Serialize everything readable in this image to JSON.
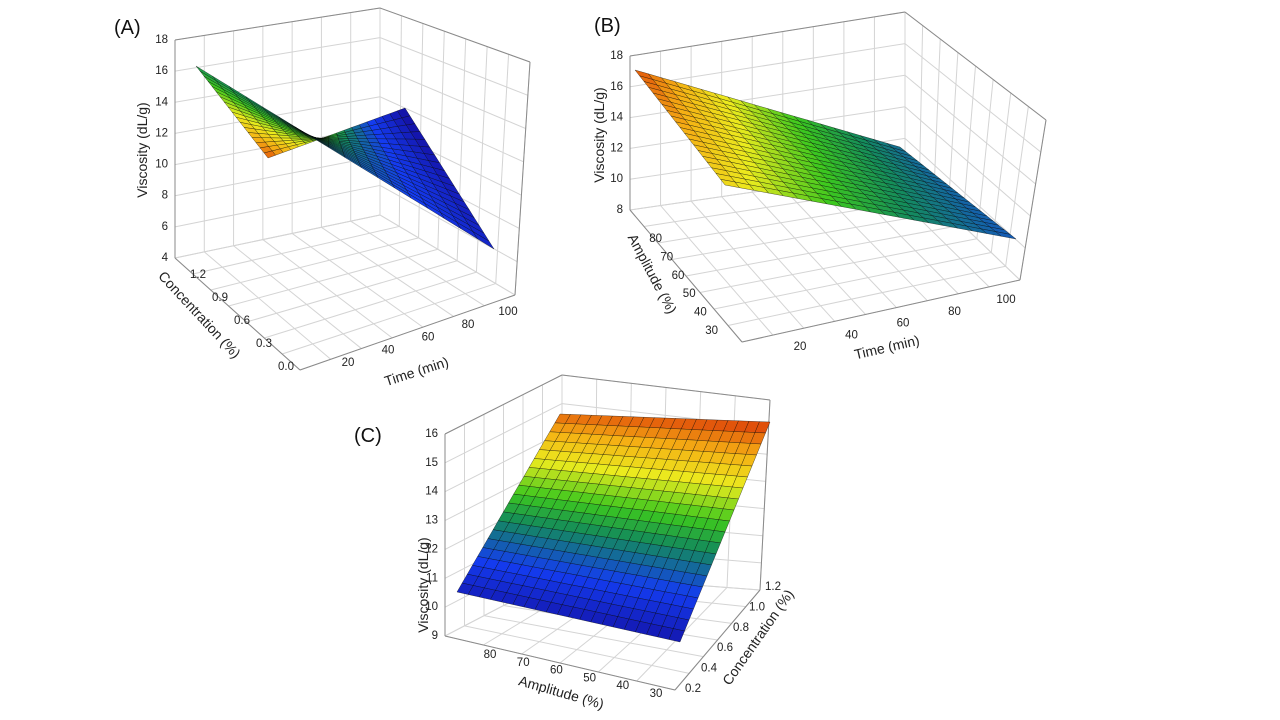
{
  "chart_data": [
    {
      "panel": "(A)",
      "type": "surface3d",
      "zlabel": "Viscosity (dL/g)",
      "xlabel": "Time (min)",
      "ylabel": "Concentration (%)",
      "x_ticks": [
        "20",
        "40",
        "60",
        "80",
        "100"
      ],
      "y_ticks": [
        "0.0",
        "0.3",
        "0.6",
        "0.9",
        "1.2"
      ],
      "z_ticks": [
        "4",
        "6",
        "8",
        "10",
        "12",
        "14",
        "16",
        "18"
      ],
      "xlim": [
        10,
        100
      ],
      "ylim": [
        0.0,
        1.2
      ],
      "zlim": [
        4,
        18
      ],
      "corner_values": {
        "time10_conc0": 10.2,
        "time10_conc1.2": 16.5,
        "time100_conc0": 6.0,
        "time100_conc1.2": 4.5
      },
      "colormap": [
        "blue",
        "green",
        "yellow",
        "orange"
      ]
    },
    {
      "panel": "(B)",
      "type": "surface3d",
      "zlabel": "Viscosity (dL/g)",
      "xlabel": "Time (min)",
      "ylabel": "Amplitude (%)",
      "x_ticks": [
        "20",
        "40",
        "60",
        "80",
        "100"
      ],
      "y_ticks": [
        "30",
        "40",
        "50",
        "60",
        "70",
        "80"
      ],
      "z_ticks": [
        "8",
        "10",
        "12",
        "14",
        "16",
        "18"
      ],
      "xlim": [
        10,
        100
      ],
      "ylim": [
        25,
        85
      ],
      "zlim": [
        8,
        18
      ],
      "corner_values": {
        "time10_amp30": 12.5,
        "time10_amp85": 17.0,
        "time100_amp30": 10.8,
        "time100_amp85": 8.5
      },
      "colormap": [
        "blue",
        "green",
        "yellow",
        "orange"
      ]
    },
    {
      "panel": "(C)",
      "type": "surface3d",
      "zlabel": "Viscosity (dL/g)",
      "xlabel": "Amplitude (%)",
      "ylabel": "Concentration (%)",
      "x_ticks": [
        "80",
        "70",
        "60",
        "50",
        "40",
        "30"
      ],
      "y_ticks": [
        "0.2",
        "0.4",
        "0.6",
        "0.8",
        "1.0",
        "1.2"
      ],
      "z_ticks": [
        "9",
        "10",
        "11",
        "12",
        "13",
        "14",
        "15",
        "16"
      ],
      "xlim": [
        25,
        85
      ],
      "ylim": [
        0.2,
        1.2
      ],
      "zlim": [
        9,
        16
      ],
      "corner_values": {
        "amp85_conc0.2": 10.6,
        "amp85_conc1.2": 15.2,
        "amp30_conc0.2": 10.2,
        "amp30_conc1.2": 15.8
      },
      "colormap": [
        "blue",
        "green",
        "yellow",
        "orange"
      ]
    }
  ]
}
